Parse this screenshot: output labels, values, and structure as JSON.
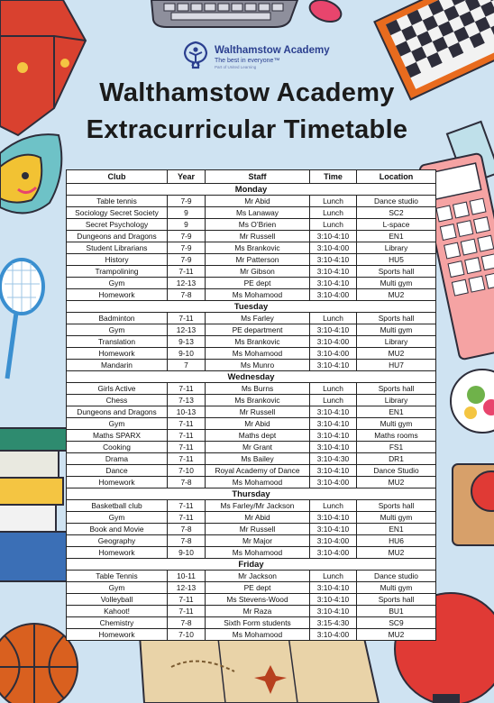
{
  "logo": {
    "name": "Walthamstow Academy",
    "tagline": "The best in everyone™",
    "subline": "Part of United Learning"
  },
  "title_line1": "Walthamstow Academy",
  "title_line2": "Extracurricular Timetable",
  "table": {
    "headers": [
      "Club",
      "Year",
      "Staff",
      "Time",
      "Location"
    ],
    "days": [
      {
        "day": "Monday",
        "rows": [
          [
            "Table tennis",
            "7-9",
            "Mr Abid",
            "Lunch",
            "Dance studio"
          ],
          [
            "Sociology Secret Society",
            "9",
            "Ms Lanaway",
            "Lunch",
            "SC2"
          ],
          [
            "Secret Psychology",
            "9",
            "Ms O’Brien",
            "Lunch",
            "L-space"
          ],
          [
            "Dungeons and Dragons",
            "7-9",
            "Mr Russell",
            "3:10-4:10",
            "EN1"
          ],
          [
            "Student Librarians",
            "7-9",
            "Ms Brankovic",
            "3:10-4:00",
            "Library"
          ],
          [
            "History",
            "7-9",
            "Mr Patterson",
            "3:10-4:10",
            "HU5"
          ],
          [
            "Trampolining",
            "7-11",
            "Mr Gibson",
            "3:10-4:10",
            "Sports hall"
          ],
          [
            "Gym",
            "12-13",
            "PE dept",
            "3:10-4:10",
            "Multi gym"
          ],
          [
            "Homework",
            "7-8",
            "Ms Mohamood",
            "3:10-4:00",
            "MU2"
          ]
        ]
      },
      {
        "day": "Tuesday",
        "rows": [
          [
            "Badminton",
            "7-11",
            "Ms Farley",
            "Lunch",
            "Sports hall"
          ],
          [
            "Gym",
            "12-13",
            "PE department",
            "3:10-4:10",
            "Multi gym"
          ],
          [
            "Translation",
            "9-13",
            "Ms Brankovic",
            "3:10-4:00",
            "Library"
          ],
          [
            "Homework",
            "9-10",
            "Ms Mohamood",
            "3:10-4:00",
            "MU2"
          ],
          [
            "Mandarin",
            "7",
            "Ms Munro",
            "3:10-4:10",
            "HU7"
          ]
        ]
      },
      {
        "day": "Wednesday",
        "rows": [
          [
            "Girls Active",
            "7-11",
            "Ms Burns",
            "Lunch",
            "Sports hall"
          ],
          [
            "Chess",
            "7-13",
            "Ms Brankovic",
            "Lunch",
            "Library"
          ],
          [
            "Dungeons and Dragons",
            "10-13",
            "Mr Russell",
            "3:10-4:10",
            "EN1"
          ],
          [
            "Gym",
            "7-11",
            "Mr Abid",
            "3:10-4:10",
            "Multi gym"
          ],
          [
            "Maths SPARX",
            "7-11",
            "Maths dept",
            "3:10-4:10",
            "Maths rooms"
          ],
          [
            "Cooking",
            "7-11",
            "Mr Grant",
            "3:10-4:10",
            "FS1"
          ],
          [
            "Drama",
            "7-11",
            "Ms Bailey",
            "3:10-4:30",
            "DR1"
          ],
          [
            "Dance",
            "7-10",
            "Royal Academy of Dance",
            "3:10-4:10",
            "Dance Studio"
          ],
          [
            "Homework",
            "7-8",
            "Ms Mohamood",
            "3:10-4:00",
            "MU2"
          ]
        ]
      },
      {
        "day": "Thursday",
        "rows": [
          [
            "Basketball club",
            "7-11",
            "Ms Farley/Mr Jackson",
            "Lunch",
            "Sports hall"
          ],
          [
            "Gym",
            "7-11",
            "Mr Abid",
            "3:10-4:10",
            "Multi gym"
          ],
          [
            "Book and Movie",
            "7-8",
            "Mr Russell",
            "3:10-4:10",
            "EN1"
          ],
          [
            "Geography",
            "7-8",
            "Mr Major",
            "3:10-4:00",
            "HU6"
          ],
          [
            "Homework",
            "9-10",
            "Ms Mohamood",
            "3:10-4:00",
            "MU2"
          ]
        ]
      },
      {
        "day": "Friday",
        "rows": [
          [
            "Table Tennis",
            "10-11",
            "Mr Jackson",
            "Lunch",
            "Dance studio"
          ],
          [
            "Gym",
            "12-13",
            "PE dept",
            "3:10-4:10",
            "Multi gym"
          ],
          [
            "Volleyball",
            "7-11",
            "Ms Stevens-Wood",
            "3:10-4:10",
            "Sports hall"
          ],
          [
            "Kahoot!",
            "7-11",
            "Mr Raza",
            "3:10-4:10",
            "BU1"
          ],
          [
            "Chemistry",
            "7-8",
            "Sixth Form students",
            "3:15-4:30",
            "SC9"
          ],
          [
            "Homework",
            "7-10",
            "Ms Mohamood",
            "3:10-4:00",
            "MU2"
          ]
        ]
      }
    ]
  }
}
